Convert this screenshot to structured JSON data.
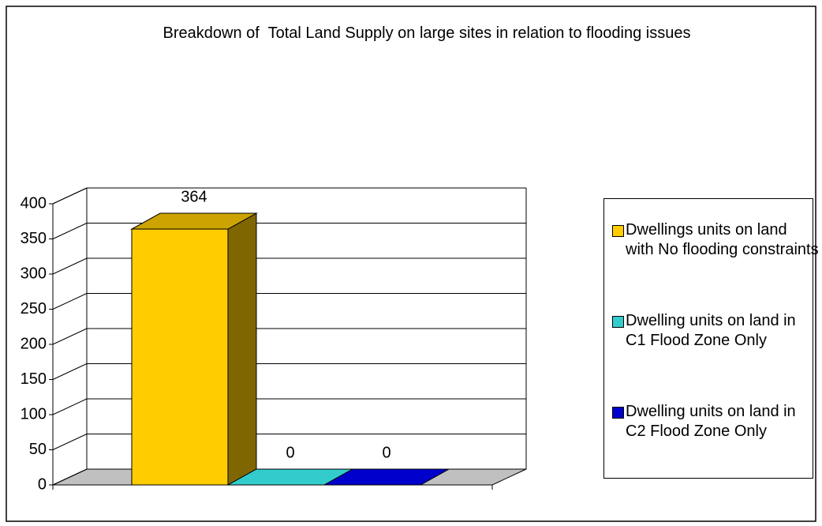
{
  "chart_data": {
    "type": "bar3d",
    "title": "Breakdown of  Total Land Supply on large sites in relation to flooding issues",
    "series": [
      {
        "name": "Dwellings units on land with No flooding constraints",
        "color": "#FFCC00",
        "values": [
          364
        ]
      },
      {
        "name": "Dwelling units on land in C1 Flood Zone Only",
        "color": "#33CCCC",
        "values": [
          0
        ]
      },
      {
        "name": "Dwelling units on land in C2 Flood Zone Only",
        "color": "#0000CC",
        "values": [
          0
        ]
      }
    ],
    "ylim": [
      0,
      400
    ],
    "yticks": [
      0,
      50,
      100,
      150,
      200,
      250,
      300,
      350,
      400
    ],
    "grid": true,
    "legend": "right",
    "floor_color": "#C0C0C0"
  }
}
